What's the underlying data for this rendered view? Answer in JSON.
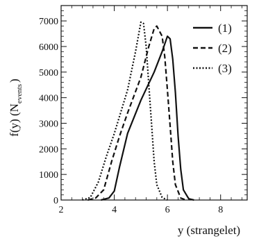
{
  "chart_data": {
    "type": "line",
    "title": "",
    "xlabel": "y (strangelet)",
    "ylabel_main": "f(y) (N",
    "ylabel_sub": "events",
    "ylabel_close": ")",
    "xlim": [
      2,
      9
    ],
    "ylim": [
      0,
      7600
    ],
    "xticks": [
      2,
      4,
      6,
      8
    ],
    "yticks": [
      0,
      1000,
      2000,
      3000,
      4000,
      5000,
      6000,
      7000
    ],
    "grid": false,
    "legend_position": "top-right",
    "series": [
      {
        "name": "(1)",
        "style": "solid",
        "points": [
          [
            3.5,
            0
          ],
          [
            3.8,
            80
          ],
          [
            4.0,
            350
          ],
          [
            4.2,
            1300
          ],
          [
            4.5,
            2600
          ],
          [
            5.0,
            3900
          ],
          [
            5.5,
            5000
          ],
          [
            5.8,
            5800
          ],
          [
            6.0,
            6400
          ],
          [
            6.1,
            6300
          ],
          [
            6.2,
            5500
          ],
          [
            6.3,
            4200
          ],
          [
            6.4,
            2500
          ],
          [
            6.5,
            1200
          ],
          [
            6.6,
            400
          ],
          [
            6.8,
            50
          ],
          [
            7.0,
            0
          ]
        ]
      },
      {
        "name": "(2)",
        "style": "dashed",
        "points": [
          [
            3.0,
            0
          ],
          [
            3.3,
            80
          ],
          [
            3.6,
            400
          ],
          [
            3.9,
            1500
          ],
          [
            4.2,
            2500
          ],
          [
            4.5,
            3400
          ],
          [
            5.0,
            4800
          ],
          [
            5.3,
            6000
          ],
          [
            5.5,
            6700
          ],
          [
            5.6,
            6800
          ],
          [
            5.8,
            6400
          ],
          [
            5.9,
            5600
          ],
          [
            6.0,
            4300
          ],
          [
            6.1,
            2900
          ],
          [
            6.2,
            1500
          ],
          [
            6.3,
            600
          ],
          [
            6.5,
            80
          ],
          [
            6.7,
            0
          ]
        ]
      },
      {
        "name": "(3)",
        "style": "dotted",
        "points": [
          [
            2.8,
            0
          ],
          [
            3.1,
            100
          ],
          [
            3.4,
            700
          ],
          [
            3.7,
            1700
          ],
          [
            4.0,
            2600
          ],
          [
            4.5,
            4300
          ],
          [
            4.8,
            5800
          ],
          [
            5.0,
            6950
          ],
          [
            5.1,
            6900
          ],
          [
            5.2,
            6000
          ],
          [
            5.3,
            4500
          ],
          [
            5.4,
            3000
          ],
          [
            5.5,
            1500
          ],
          [
            5.6,
            600
          ],
          [
            5.8,
            100
          ],
          [
            6.0,
            0
          ]
        ]
      }
    ]
  }
}
